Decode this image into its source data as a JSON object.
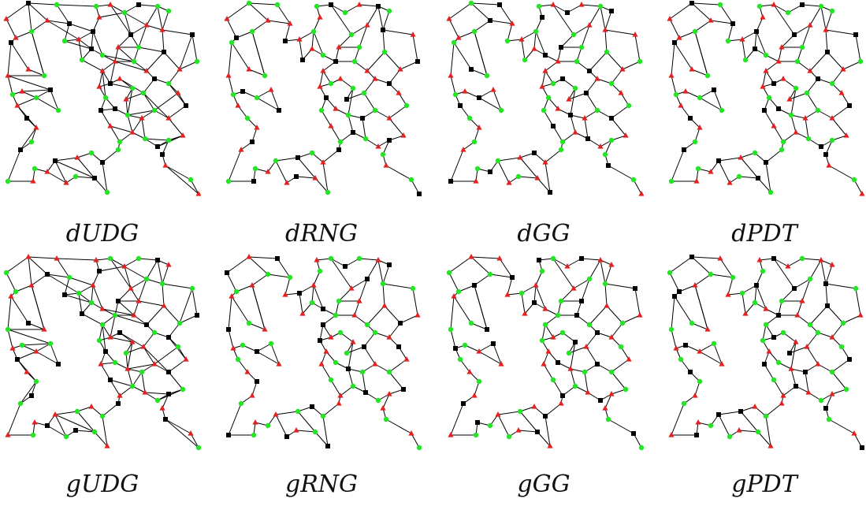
{
  "captions": {
    "p1": "dUDG",
    "p2": "dRNG",
    "p3": "dGG",
    "p4": "dPDT",
    "p5": "gUDG",
    "p6": "gRNG",
    "p7": "gGG",
    "p8": "gPDT"
  },
  "colors": {
    "edge": "#000000",
    "node_green": "#22e622",
    "node_red": "#e62020",
    "node_black": "#000000"
  },
  "node_shapes": {
    "green": "circle",
    "red": "triangle",
    "black": "square"
  }
}
